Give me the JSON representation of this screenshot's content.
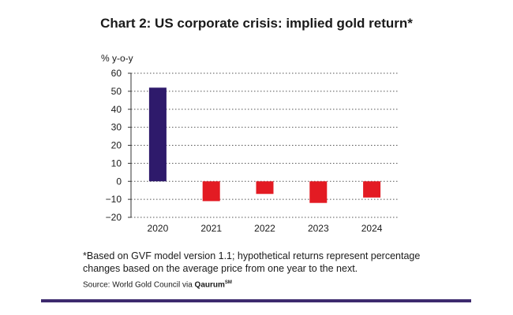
{
  "chart_data": {
    "type": "bar",
    "title": "Chart 2: US corporate crisis: implied gold return*",
    "ylabel": "% y-o-y",
    "categories": [
      "2020",
      "2021",
      "2022",
      "2023",
      "2024"
    ],
    "values": [
      52,
      -11,
      -7,
      -12,
      -9
    ],
    "colors": [
      "#2e1a6b",
      "#e31b23",
      "#e31b23",
      "#e31b23",
      "#e31b23"
    ],
    "ylim": [
      -20,
      60
    ],
    "yticks": [
      60,
      50,
      40,
      30,
      20,
      10,
      0,
      -10,
      -20
    ],
    "grid": true
  },
  "footnote": "*Based on GVF model version 1.1; hypothetical returns represent percentage changes based on the average price from one year to the next.",
  "source": {
    "prefix": "Source: World Gold Council via ",
    "brand": "Qaurum",
    "mark": "SM"
  },
  "colors": {
    "rule": "#3d2a6e",
    "grid": "#555555"
  }
}
